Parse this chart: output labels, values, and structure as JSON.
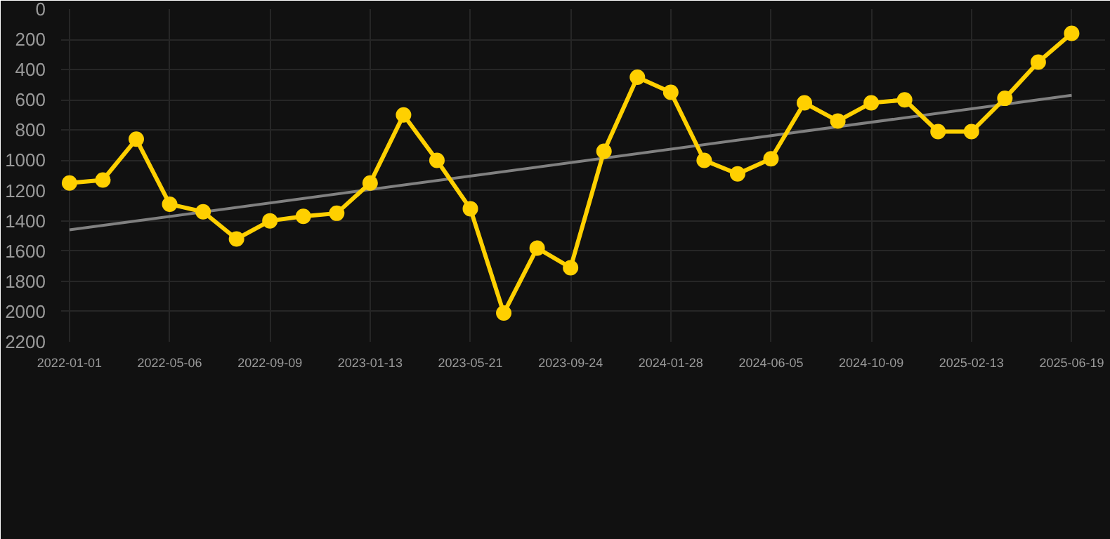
{
  "chart_data": {
    "type": "line",
    "categories": [
      "2022-01-01",
      null,
      null,
      "2022-05-06",
      null,
      null,
      "2022-09-09",
      null,
      null,
      "2023-01-13",
      null,
      null,
      "2023-05-21",
      null,
      null,
      "2023-09-24",
      null,
      null,
      "2024-01-28",
      null,
      null,
      "2024-06-05",
      null,
      null,
      "2024-10-09",
      null,
      null,
      "2025-02-13",
      null,
      null,
      "2025-06-19"
    ],
    "series": [
      {
        "color": "#ffd000",
        "marker": "circle",
        "values": [
          1150,
          1130,
          860,
          1290,
          1340,
          1520,
          1400,
          1370,
          1350,
          1150,
          700,
          1000,
          1320,
          2010,
          1580,
          1710,
          940,
          450,
          550,
          1000,
          1090,
          990,
          620,
          740,
          620,
          600,
          810,
          810,
          590,
          350,
          160
        ]
      },
      {
        "type": "line",
        "color": "#808080",
        "marker": "none",
        "values": [
          1460,
          null,
          null,
          null,
          null,
          null,
          null,
          null,
          null,
          null,
          null,
          null,
          null,
          null,
          null,
          null,
          null,
          null,
          null,
          null,
          null,
          null,
          null,
          null,
          null,
          null,
          null,
          null,
          null,
          null,
          570
        ]
      }
    ],
    "ylim": [
      2200,
      0
    ],
    "yticks": [
      0,
      200,
      400,
      600,
      800,
      1000,
      1200,
      1400,
      1600,
      1800,
      2000,
      2200
    ],
    "grid": true
  }
}
